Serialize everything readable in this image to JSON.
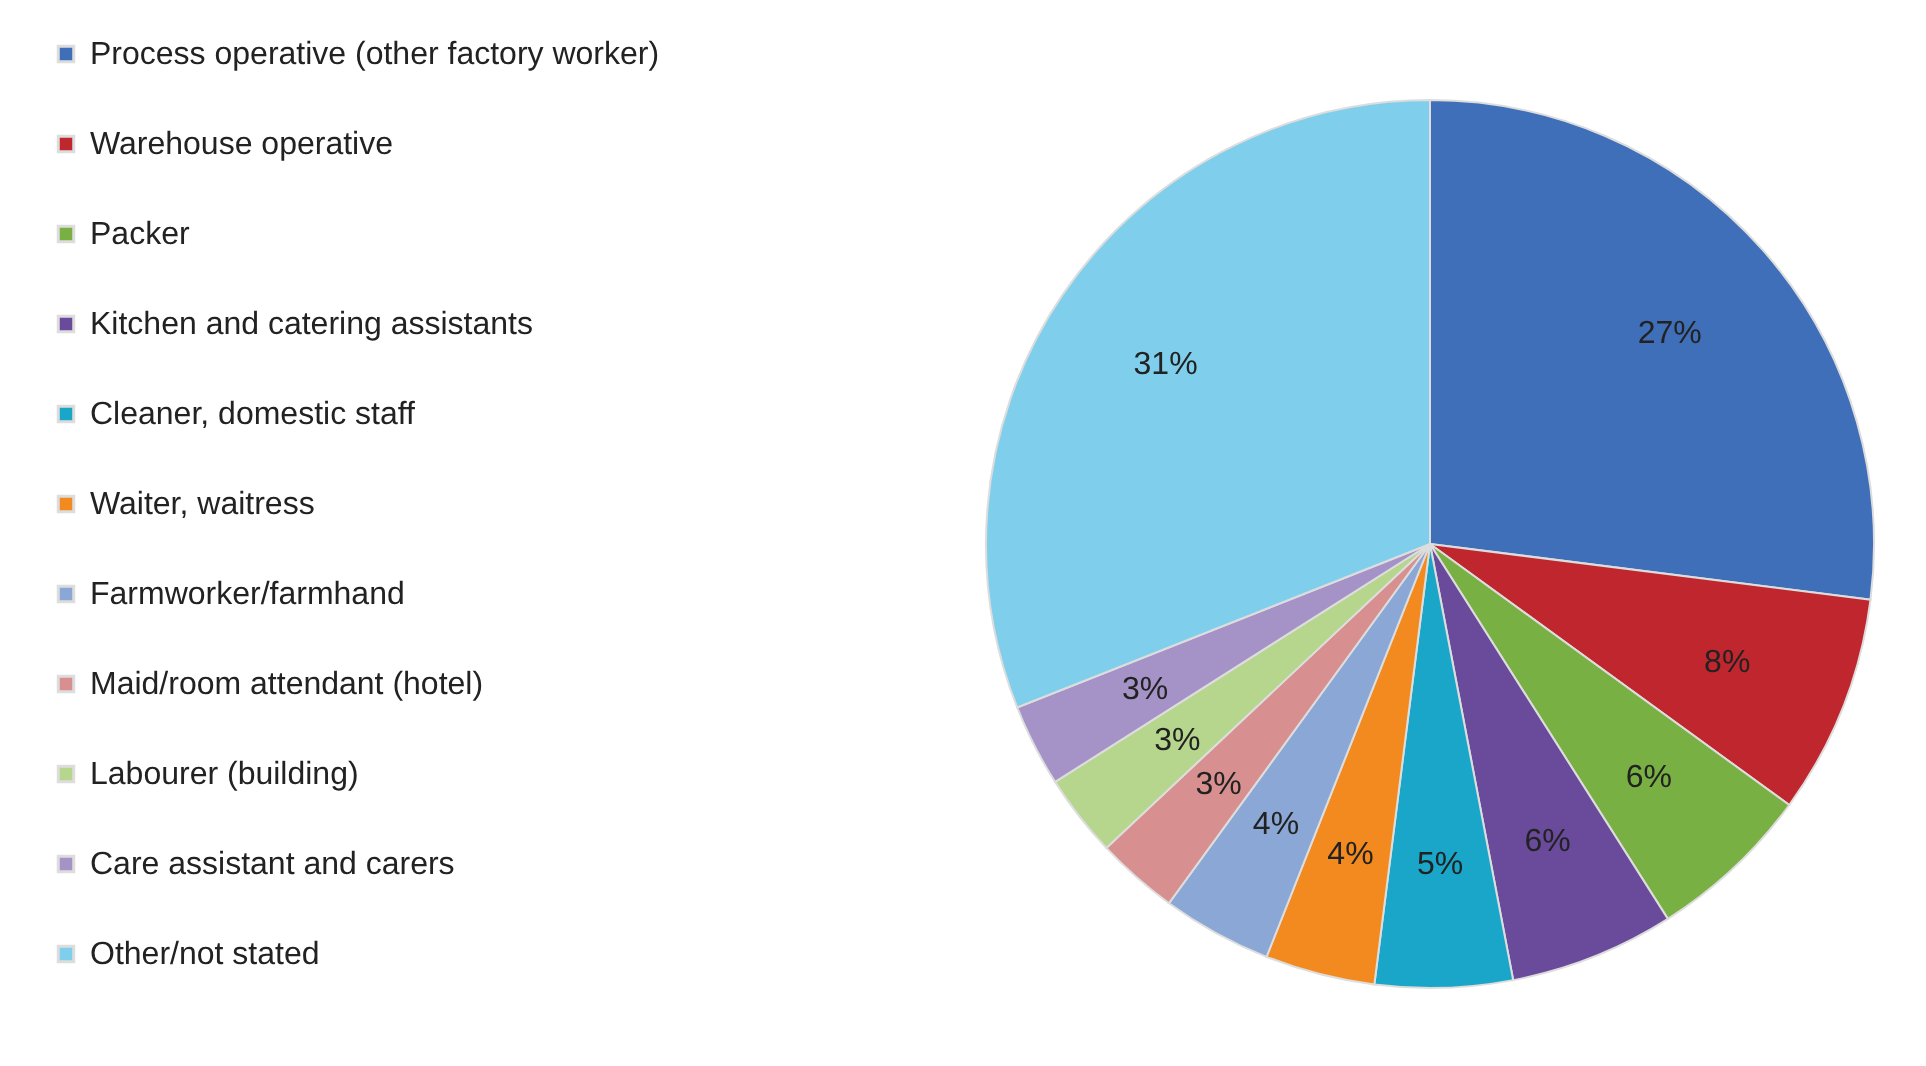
{
  "chart_data": {
    "type": "pie",
    "categories": [
      "Process operative (other factory worker)",
      "Warehouse operative",
      "Packer",
      "Kitchen and catering assistants",
      "Cleaner, domestic staff",
      "Waiter, waitress",
      "Farmworker/farmhand",
      "Maid/room attendant (hotel)",
      "Labourer (building)",
      "Care assistant and carers",
      "Other/not stated"
    ],
    "values": [
      27,
      8,
      6,
      6,
      5,
      4,
      4,
      3,
      3,
      3,
      31
    ],
    "value_labels": [
      "27%",
      "8%",
      "6%",
      "6%",
      "5%",
      "4%",
      "4%",
      "3%",
      "3%",
      "3%",
      "31%"
    ],
    "colors": [
      "#3f6fb8",
      "#c0262d",
      "#79b043",
      "#6a4a9a",
      "#1aa6c8",
      "#f28a20",
      "#8aa7d6",
      "#d88f8f",
      "#b5d68c",
      "#a593c8",
      "#7fcfec"
    ],
    "legend": "left"
  }
}
